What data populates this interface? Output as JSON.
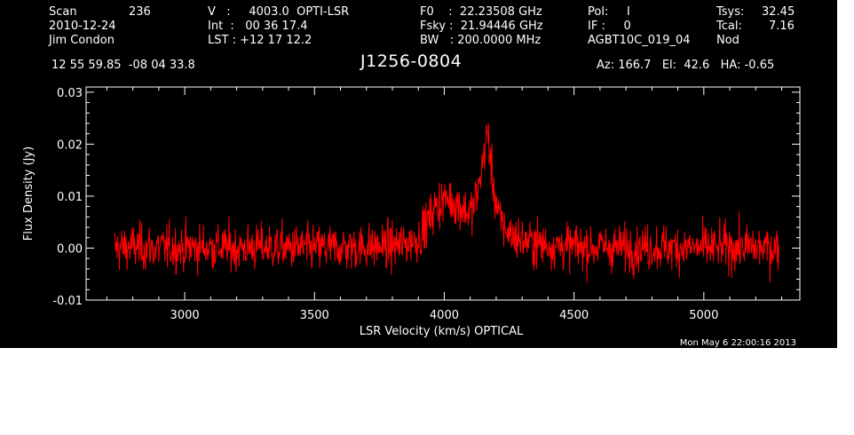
{
  "header": {
    "col1": {
      "scan_label": "Scan",
      "scan_value": "236",
      "date": "2010-12-24",
      "observer": "Jim Condon"
    },
    "col2": {
      "v_line": "V   :     4003.0  OPTI-LSR",
      "int_line": "Int  :   00 36 17.4",
      "lst_line": "LST : +12 17 12.2"
    },
    "col3": {
      "f0_line": "F0    :  22.23508 GHz",
      "fsky_line": "Fsky :  21.94446 GHz",
      "bw_line": "BW   : 200.0000 MHz"
    },
    "col4": {
      "pol_line": "Pol:     I",
      "if_line": "IF :     0",
      "project": "AGBT10C_019_04"
    },
    "col5": {
      "tsys_label": "Tsys:",
      "tsys_value": "32.45",
      "tcal_label": "Tcal:",
      "tcal_value": "7.16",
      "mode": "Nod"
    },
    "coords": "12 55 59.85  -08 04 33.8",
    "source": "J1256-0804",
    "pointing": "Az: 166.7   El:  42.6   HA: -0.65"
  },
  "timestamp": "Mon May  6 22:00:16 2013",
  "colors": {
    "background": "#000000",
    "axes": "#ffffff",
    "trace": "#ff0000"
  },
  "chart_data": {
    "type": "line",
    "title": "J1256-0804",
    "xlabel": "LSR Velocity (km/s) OPTICAL",
    "ylabel": "Flux Density (Jy)",
    "xlim": [
      2620,
      5370
    ],
    "ylim": [
      -0.01,
      0.031
    ],
    "xticks": [
      3000,
      3500,
      4000,
      4500,
      5000
    ],
    "xtick_labels": [
      "3000",
      "3500",
      "4000",
      "4500",
      "5000"
    ],
    "yticks": [
      -0.01,
      0.0,
      0.01,
      0.02,
      0.03
    ],
    "ytick_labels": [
      "-0.01",
      "0.00",
      "0.01",
      "0.02",
      "0.03"
    ],
    "grid": false,
    "series": [
      {
        "color": "#ff0000",
        "x": [
          2730,
          2800,
          2900,
          3000,
          3100,
          3200,
          3300,
          3400,
          3500,
          3600,
          3700,
          3800,
          3850,
          3900,
          3930,
          3960,
          3990,
          4010,
          4030,
          4050,
          4070,
          4090,
          4110,
          4130,
          4150,
          4160,
          4165,
          4170,
          4180,
          4195,
          4210,
          4230,
          4260,
          4300,
          4350,
          4400,
          4500,
          4600,
          4700,
          4800,
          4900,
          5000,
          5100,
          5200,
          5290
        ],
        "y": [
          0.0,
          0.0002,
          0.0,
          0.0001,
          0.0002,
          0.0,
          0.0002,
          0.0001,
          0.0,
          0.0002,
          0.0002,
          0.0004,
          0.0008,
          0.002,
          0.0045,
          0.0075,
          0.009,
          0.0095,
          0.009,
          0.0085,
          0.0078,
          0.0068,
          0.0075,
          0.011,
          0.017,
          0.0205,
          0.022,
          0.021,
          0.016,
          0.01,
          0.006,
          0.004,
          0.0025,
          0.0015,
          0.001,
          0.0006,
          0.0003,
          0.0002,
          0.0001,
          0.0002,
          0.0001,
          0.0,
          0.0002,
          0.0001,
          0.0001
        ],
        "noise_rms": 0.0022
      }
    ]
  }
}
